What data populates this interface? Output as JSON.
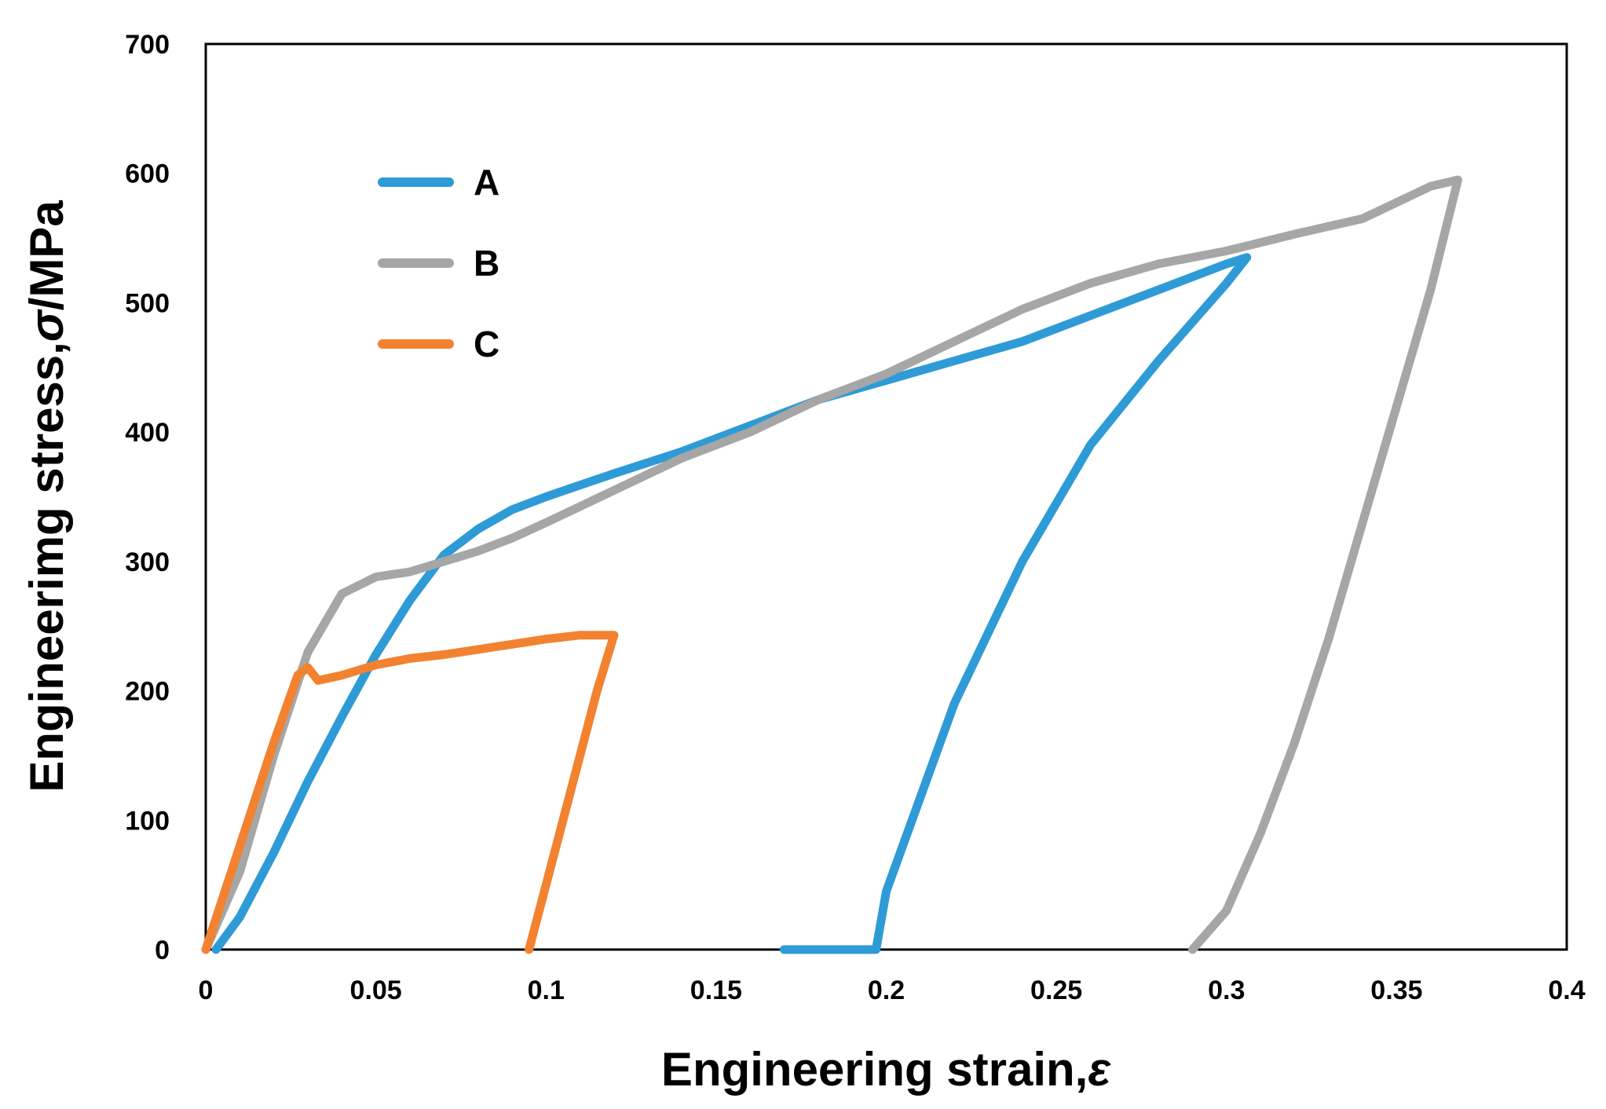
{
  "chart_data": {
    "type": "line",
    "title": "",
    "xlabel": "Engineering strain,",
    "xlabel_symbol": "ε",
    "ylabel": "Engineerimg stress,",
    "ylabel_symbol": "σ",
    "ylabel_unit": "/MPa",
    "xlim": [
      0,
      0.4
    ],
    "ylim": [
      0,
      700
    ],
    "x_ticks": [
      0,
      0.05,
      0.1,
      0.15,
      0.2,
      0.25,
      0.3,
      0.35,
      0.4
    ],
    "x_tick_labels": [
      "0",
      "0.05",
      "0.1",
      "0.15",
      "0.2",
      "0.25",
      "0.3",
      "0.35",
      "0.4"
    ],
    "y_ticks": [
      0,
      100,
      200,
      300,
      400,
      500,
      600,
      700
    ],
    "y_tick_labels": [
      "0",
      "100",
      "200",
      "300",
      "400",
      "500",
      "600",
      "700"
    ],
    "grid": false,
    "legend_position": "top-left",
    "series": [
      {
        "name": "A",
        "color": "#2E9BD6",
        "points": [
          [
            0.003,
            0
          ],
          [
            0.01,
            25
          ],
          [
            0.02,
            75
          ],
          [
            0.03,
            130
          ],
          [
            0.04,
            180
          ],
          [
            0.05,
            228
          ],
          [
            0.06,
            270
          ],
          [
            0.07,
            305
          ],
          [
            0.08,
            325
          ],
          [
            0.09,
            340
          ],
          [
            0.1,
            350
          ],
          [
            0.12,
            368
          ],
          [
            0.14,
            385
          ],
          [
            0.16,
            405
          ],
          [
            0.18,
            425
          ],
          [
            0.2,
            440
          ],
          [
            0.22,
            455
          ],
          [
            0.24,
            470
          ],
          [
            0.26,
            490
          ],
          [
            0.28,
            510
          ],
          [
            0.3,
            530
          ],
          [
            0.306,
            535
          ],
          [
            0.3,
            515
          ],
          [
            0.28,
            455
          ],
          [
            0.26,
            390
          ],
          [
            0.24,
            300
          ],
          [
            0.22,
            190
          ],
          [
            0.2,
            45
          ],
          [
            0.197,
            0
          ],
          [
            0.17,
            0
          ]
        ]
      },
      {
        "name": "B",
        "color": "#A6A6A6",
        "points": [
          [
            0,
            0
          ],
          [
            0.01,
            60
          ],
          [
            0.02,
            150
          ],
          [
            0.03,
            230
          ],
          [
            0.04,
            275
          ],
          [
            0.05,
            288
          ],
          [
            0.06,
            292
          ],
          [
            0.07,
            300
          ],
          [
            0.08,
            308
          ],
          [
            0.09,
            318
          ],
          [
            0.1,
            330
          ],
          [
            0.12,
            355
          ],
          [
            0.14,
            380
          ],
          [
            0.16,
            400
          ],
          [
            0.18,
            425
          ],
          [
            0.2,
            445
          ],
          [
            0.22,
            470
          ],
          [
            0.24,
            495
          ],
          [
            0.26,
            515
          ],
          [
            0.28,
            530
          ],
          [
            0.3,
            540
          ],
          [
            0.32,
            553
          ],
          [
            0.34,
            565
          ],
          [
            0.36,
            590
          ],
          [
            0.368,
            595
          ],
          [
            0.36,
            510
          ],
          [
            0.35,
            420
          ],
          [
            0.34,
            330
          ],
          [
            0.33,
            240
          ],
          [
            0.32,
            160
          ],
          [
            0.31,
            90
          ],
          [
            0.3,
            30
          ],
          [
            0.29,
            0
          ]
        ]
      },
      {
        "name": "C",
        "color": "#F28230",
        "points": [
          [
            0,
            0
          ],
          [
            0.01,
            80
          ],
          [
            0.02,
            160
          ],
          [
            0.027,
            212
          ],
          [
            0.03,
            218
          ],
          [
            0.033,
            208
          ],
          [
            0.04,
            212
          ],
          [
            0.05,
            220
          ],
          [
            0.06,
            225
          ],
          [
            0.07,
            228
          ],
          [
            0.08,
            232
          ],
          [
            0.09,
            236
          ],
          [
            0.1,
            240
          ],
          [
            0.11,
            243
          ],
          [
            0.12,
            243
          ],
          [
            0.115,
            200
          ],
          [
            0.11,
            150
          ],
          [
            0.105,
            100
          ],
          [
            0.1,
            50
          ],
          [
            0.095,
            0
          ]
        ]
      }
    ]
  }
}
